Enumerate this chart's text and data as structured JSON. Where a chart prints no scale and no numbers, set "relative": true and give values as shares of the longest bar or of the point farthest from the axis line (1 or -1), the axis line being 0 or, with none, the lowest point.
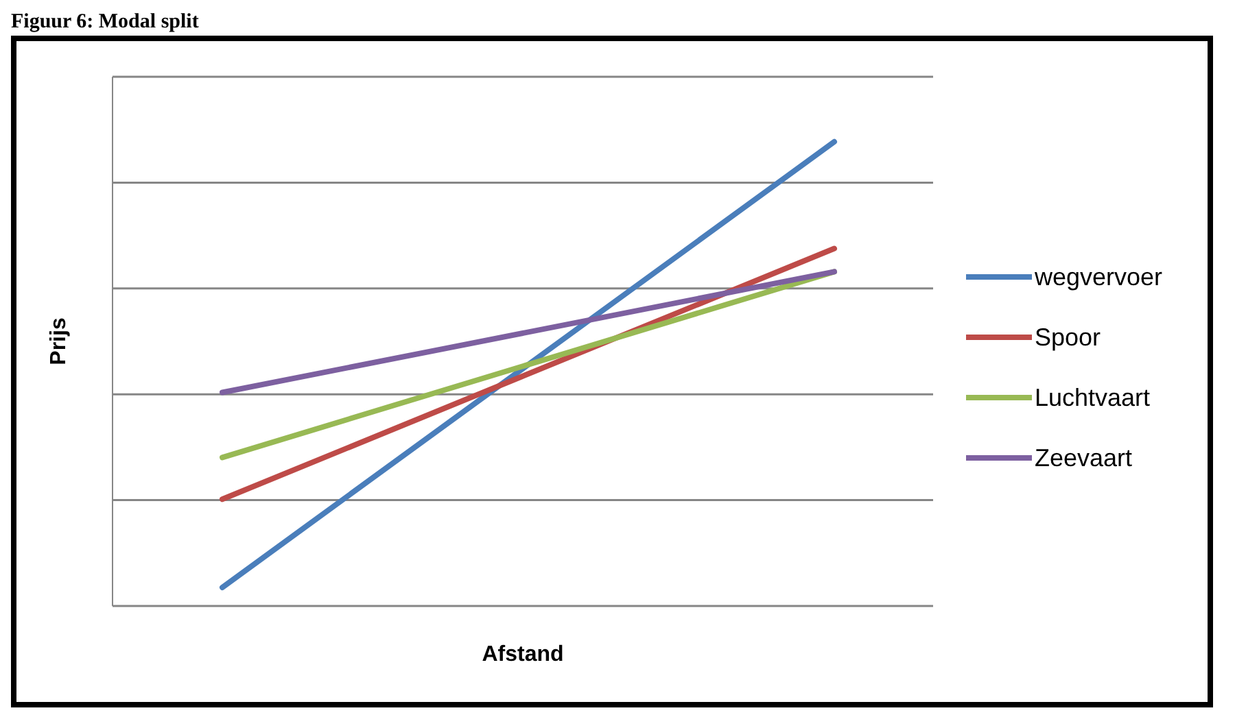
{
  "chart_data": {
    "type": "line",
    "title": "Figuur 6: Modal split",
    "xlabel": "Afstand",
    "ylabel": "Prijs",
    "categories": [
      null,
      null
    ],
    "relative": true,
    "grid": "y",
    "legend": "right",
    "marker": "none",
    "line_style": "solid",
    "series": [
      {
        "name": "wegvervoer",
        "color": "#4a7ebb",
        "values": [
          0.04,
          1
        ]
      },
      {
        "name": "Spoor",
        "color": "#be4b48",
        "values": [
          0.23,
          0.77
        ]
      },
      {
        "name": "Luchtvaart",
        "color": "#98b954",
        "values": [
          0.32,
          0.72
        ]
      },
      {
        "name": "Zeevaart",
        "color": "#7d60a0",
        "values": [
          0.46,
          0.72
        ]
      }
    ]
  }
}
